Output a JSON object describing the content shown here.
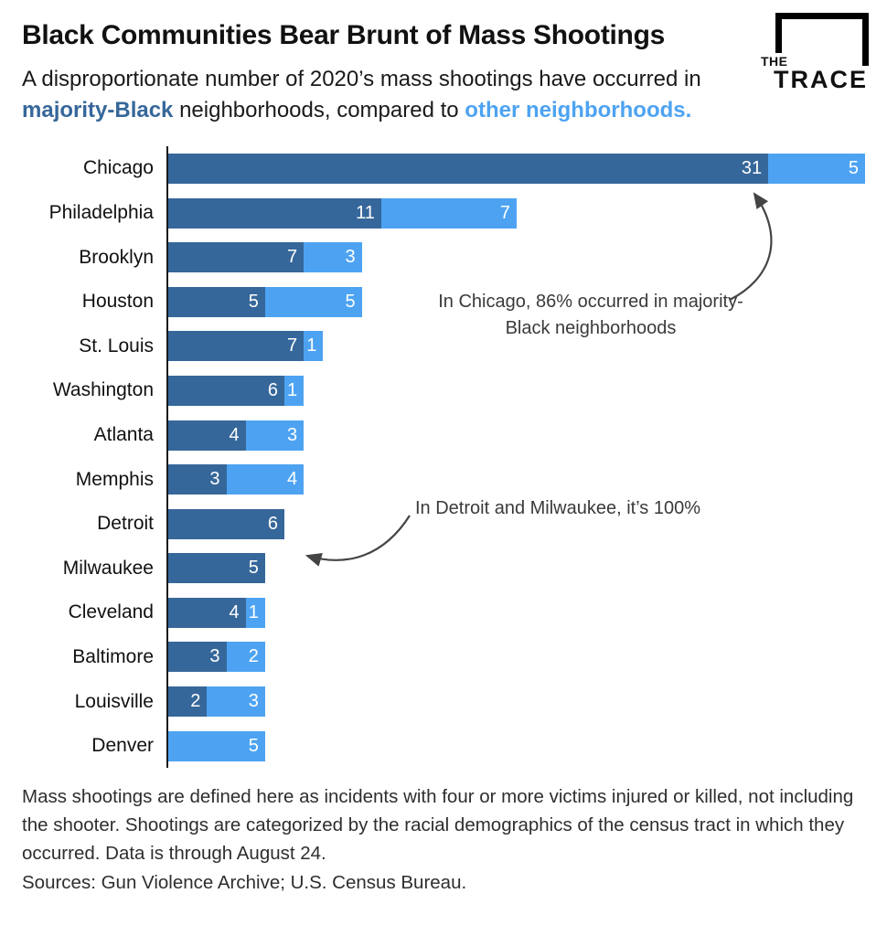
{
  "header": {
    "title": "Black Communities Bear Brunt of Mass Shootings",
    "subtitle": {
      "part1": "A disproportionate number of 2020’s mass shootings have occurred in ",
      "highlight1": "majority-Black",
      "part2": " neighborhoods, compared to ",
      "highlight2": "other neighborhoods."
    },
    "logo": {
      "line1": "THE",
      "line2": "TRACE"
    }
  },
  "chart_data": {
    "type": "bar",
    "orientation": "horizontal",
    "stacked": true,
    "categories": [
      "Chicago",
      "Philadelphia",
      "Brooklyn",
      "Houston",
      "St. Louis",
      "Washington",
      "Atlanta",
      "Memphis",
      "Detroit",
      "Milwaukee",
      "Cleveland",
      "Baltimore",
      "Louisville",
      "Denver"
    ],
    "series": [
      {
        "name": "Majority-Black neighborhoods",
        "color": "#36679a",
        "values": [
          31,
          11,
          7,
          5,
          7,
          6,
          4,
          3,
          6,
          5,
          4,
          3,
          2,
          0
        ]
      },
      {
        "name": "Other neighborhoods",
        "color": "#4da3f2",
        "values": [
          5,
          7,
          3,
          5,
          1,
          1,
          3,
          4,
          0,
          0,
          1,
          2,
          3,
          5
        ]
      }
    ],
    "xmax": 36,
    "xlim": [
      0,
      36
    ],
    "grid": false,
    "legend": "none (encoded in subtitle colors)",
    "annotations": [
      {
        "text": "In Chicago, 86% occurred in majority-Black neighborhoods",
        "target": "Chicago"
      },
      {
        "text": "In Detroit and Milwaukee, it’s 100%",
        "target": "Detroit and Milwaukee"
      }
    ]
  },
  "footer": {
    "note": "Mass shootings are defined here as incidents with four or more victims injured or killed, not including the shooter. Shootings are categorized by the racial demographics of the census tract in which they occurred. Data is through August 24.",
    "sources": "Sources: Gun Violence Archive; U.S. Census Bureau."
  }
}
